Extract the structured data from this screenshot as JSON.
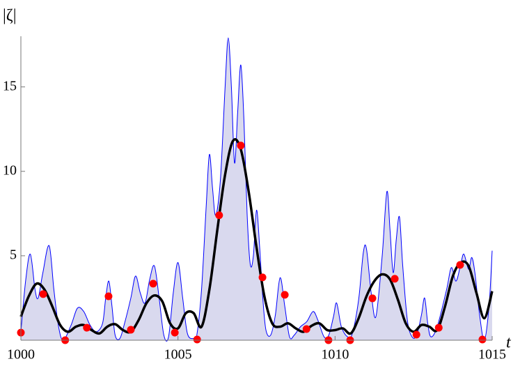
{
  "chart_data": {
    "type": "line",
    "xlabel": "t",
    "ylabel": "|ζ|",
    "xlim": [
      1000,
      1015
    ],
    "ylim": [
      0,
      18
    ],
    "xticks": [
      1000,
      1005,
      1010,
      1015
    ],
    "yticks": [
      5,
      10,
      15
    ],
    "series": [
      {
        "color": "#0000ff",
        "fill": "#d9d9ee",
        "line_width": 1,
        "x": [
          1000.0,
          1000.15,
          1000.3,
          1000.45,
          1000.55,
          1000.7,
          1000.9,
          1001.05,
          1001.2,
          1001.35,
          1001.6,
          1001.8,
          1002.0,
          1002.2,
          1002.4,
          1002.6,
          1002.7,
          1002.8,
          1002.9,
          1003.0,
          1003.15,
          1003.3,
          1003.5,
          1003.65,
          1003.8,
          1003.95,
          1004.1,
          1004.25,
          1004.4,
          1004.55,
          1004.7,
          1004.85,
          1005.0,
          1005.15,
          1005.3,
          1005.5,
          1005.6,
          1005.75,
          1005.9,
          1006.0,
          1006.1,
          1006.2,
          1006.35,
          1006.5,
          1006.6,
          1006.7,
          1006.8,
          1006.9,
          1007.0,
          1007.1,
          1007.2,
          1007.3,
          1007.4,
          1007.5,
          1007.6,
          1007.7,
          1007.8,
          1007.95,
          1008.1,
          1008.25,
          1008.4,
          1008.55,
          1008.7,
          1008.9,
          1009.1,
          1009.3,
          1009.45,
          1009.65,
          1009.8,
          1009.95,
          1010.05,
          1010.2,
          1010.4,
          1010.55,
          1010.75,
          1010.9,
          1011.0,
          1011.15,
          1011.3,
          1011.5,
          1011.65,
          1011.75,
          1011.85,
          1011.95,
          1012.05,
          1012.15,
          1012.3,
          1012.45,
          1012.6,
          1012.75,
          1012.85,
          1012.95,
          1013.05,
          1013.25,
          1013.55,
          1013.7,
          1013.85,
          1014.0,
          1014.1,
          1014.25,
          1014.35,
          1014.45,
          1014.6,
          1014.75,
          1014.9,
          1015.0
        ],
        "values": [
          0.5,
          3.5,
          5.1,
          3.0,
          2.5,
          4.0,
          5.6,
          3.0,
          0.8,
          0,
          0.9,
          1.9,
          1.7,
          0.9,
          0.5,
          1.0,
          2.5,
          3.5,
          2.0,
          0.3,
          0.1,
          1.0,
          2.5,
          3.8,
          2.8,
          2.2,
          3.6,
          4.4,
          2.5,
          0.3,
          0.2,
          2.8,
          4.6,
          2.5,
          0.4,
          0.1,
          0.3,
          3.0,
          8.0,
          11.0,
          9.0,
          7.4,
          9.5,
          15.0,
          17.9,
          15.0,
          10.5,
          13.5,
          16.3,
          13.0,
          7.5,
          4.5,
          5.0,
          7.7,
          5.5,
          2.5,
          0.6,
          0.3,
          1.5,
          3.7,
          2.0,
          0.2,
          0.3,
          0.8,
          1.1,
          1.7,
          1.2,
          0.2,
          0.3,
          1.4,
          2.2,
          0.8,
          0.2,
          0.4,
          2.4,
          5.2,
          5.4,
          2.8,
          1.4,
          5.0,
          8.8,
          6.5,
          4.0,
          6.0,
          7.3,
          4.5,
          1.2,
          0.2,
          0.3,
          1.5,
          2.5,
          1.0,
          0.2,
          0.8,
          3.0,
          4.3,
          3.5,
          4.5,
          5.1,
          4.2,
          4.9,
          4.0,
          1.5,
          0.0,
          2.0,
          5.3
        ]
      },
      {
        "color": "#000000",
        "line_width": 3.5,
        "x": [
          1000.0,
          1000.25,
          1000.5,
          1000.75,
          1001.0,
          1001.25,
          1001.5,
          1001.75,
          1002.0,
          1002.25,
          1002.5,
          1002.75,
          1003.0,
          1003.25,
          1003.5,
          1003.75,
          1004.0,
          1004.25,
          1004.5,
          1004.75,
          1005.0,
          1005.25,
          1005.5,
          1005.75,
          1006.0,
          1006.25,
          1006.5,
          1006.75,
          1007.0,
          1007.25,
          1007.5,
          1007.75,
          1008.0,
          1008.25,
          1008.5,
          1008.75,
          1009.0,
          1009.25,
          1009.5,
          1009.75,
          1010.0,
          1010.25,
          1010.5,
          1010.75,
          1011.0,
          1011.25,
          1011.5,
          1011.75,
          1012.0,
          1012.25,
          1012.5,
          1012.75,
          1013.0,
          1013.25,
          1013.5,
          1013.75,
          1014.0,
          1014.25,
          1014.5,
          1014.75,
          1015.0
        ],
        "values": [
          1.4,
          2.6,
          3.35,
          3.0,
          2.0,
          0.9,
          0.5,
          0.8,
          0.9,
          0.6,
          0.4,
          0.8,
          0.95,
          0.6,
          0.5,
          1.2,
          2.2,
          2.65,
          2.3,
          1.0,
          0.7,
          1.6,
          1.6,
          0.8,
          3.0,
          6.5,
          9.8,
          11.8,
          11.3,
          8.8,
          5.5,
          2.6,
          1.0,
          0.8,
          1.0,
          0.7,
          0.5,
          0.85,
          1.0,
          0.6,
          0.6,
          0.7,
          0.4,
          1.3,
          2.6,
          3.5,
          3.9,
          3.6,
          2.4,
          1.0,
          0.5,
          0.9,
          0.8,
          0.6,
          2.0,
          3.8,
          4.6,
          4.4,
          2.8,
          1.3,
          2.9
        ]
      },
      {
        "type": "scatter",
        "color": "#ff0000",
        "x": [
          1000.0,
          1000.71,
          1001.41,
          1002.1,
          1002.79,
          1003.5,
          1004.21,
          1004.9,
          1005.61,
          1006.31,
          1007.0,
          1007.69,
          1008.4,
          1009.09,
          1009.79,
          1010.48,
          1011.19,
          1011.9,
          1012.59,
          1013.3,
          1013.98,
          1014.69
        ],
        "values": [
          0.45,
          2.73,
          0,
          0.74,
          2.6,
          0.62,
          3.35,
          0.45,
          0.04,
          7.4,
          11.53,
          3.72,
          2.69,
          0.66,
          0,
          0,
          2.48,
          3.64,
          0.33,
          0.74,
          4.46,
          0.04
        ]
      }
    ]
  }
}
